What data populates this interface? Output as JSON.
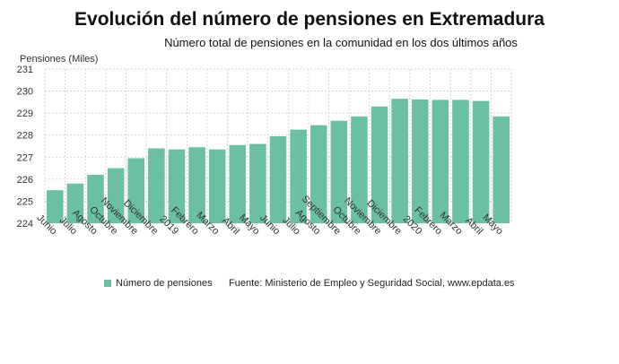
{
  "chart_data": {
    "type": "bar",
    "title": "Evolución del número de pensiones en Extremadura",
    "subtitle": "Número total de pensiones en la comunidad en los dos últimos años",
    "ylabel": "Pensiones (Miles)",
    "xlabel": "",
    "ylim": [
      224,
      231
    ],
    "yticks": [
      224,
      225,
      226,
      227,
      228,
      229,
      230,
      231
    ],
    "categories": [
      "Junio",
      "Julio",
      "Agosto",
      "Octubre",
      "Noviembre",
      "Diciembre",
      "2019",
      "Febrero",
      "Marzo",
      "Abril",
      "Mayo",
      "Junio",
      "Julio",
      "Agosto",
      "Septiembre",
      "Octubre",
      "Noviembre",
      "Diciembre",
      "2020",
      "Febrero",
      "Marzo",
      "Abril",
      "Mayo"
    ],
    "series": [
      {
        "name": "Número de pensiones",
        "values": [
          225.5,
          225.8,
          226.2,
          226.5,
          226.95,
          227.4,
          227.35,
          227.45,
          227.35,
          227.55,
          227.6,
          227.95,
          228.25,
          228.45,
          228.65,
          228.85,
          229.3,
          229.65,
          229.62,
          229.6,
          229.6,
          229.55,
          228.85
        ],
        "color": "#6bbfa3"
      }
    ],
    "grid": true,
    "legend_position": "bottom-left"
  },
  "source": "Fuente: Ministerio de Empleo y Seguridad Social, www.epdata.es"
}
